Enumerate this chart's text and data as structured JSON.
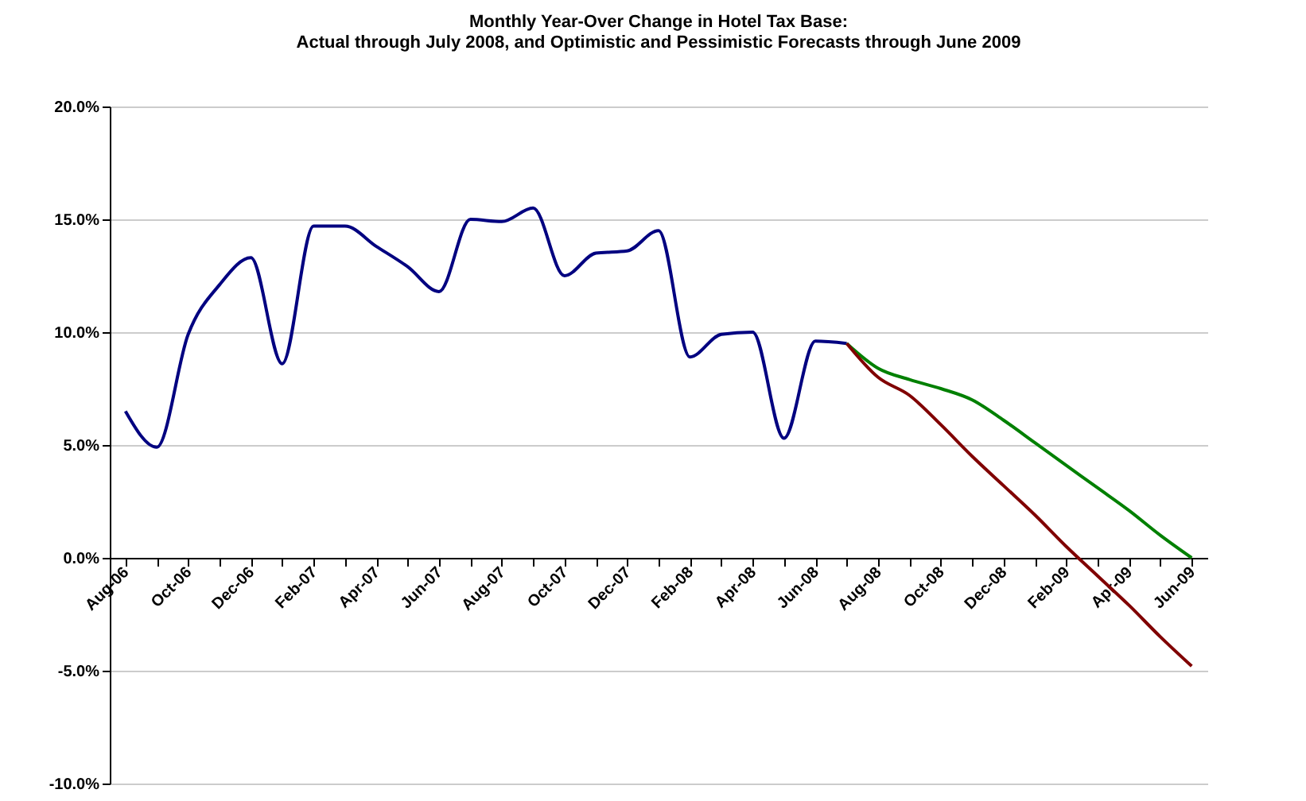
{
  "chart_data": {
    "type": "line",
    "title": [
      "Monthly Year-Over Change in Hotel Tax Base:",
      "Actual through  July 2008, and Optimistic and Pessimistic Forecasts through June 2009"
    ],
    "categories": [
      "Aug-06",
      null,
      "Oct-06",
      null,
      "Dec-06",
      null,
      "Feb-07",
      null,
      "Apr-07",
      null,
      "Jun-07",
      null,
      "Aug-07",
      null,
      "Oct-07",
      null,
      "Dec-07",
      null,
      "Feb-08",
      null,
      "Apr-08",
      null,
      "Jun-08",
      null,
      "Aug-08",
      null,
      "Oct-08",
      null,
      "Dec-08",
      null,
      "Feb-09",
      null,
      "Apr-09",
      null,
      "Jun-09"
    ],
    "series": [
      {
        "color": "#000080",
        "values": [
          6.5,
          4.9,
          9.9,
          12.1,
          13.3,
          8.6,
          14.7,
          14.7,
          13.8,
          12.9,
          11.8,
          15.0,
          14.9,
          15.5,
          12.5,
          13.5,
          13.6,
          14.5,
          8.9,
          9.9,
          10.0,
          5.3,
          9.6,
          9.5,
          null,
          null,
          null,
          null,
          null,
          null,
          null,
          null,
          null,
          null,
          null
        ]
      },
      {
        "color": "#008000",
        "values": [
          null,
          null,
          null,
          null,
          null,
          null,
          null,
          null,
          null,
          null,
          null,
          null,
          null,
          null,
          null,
          null,
          null,
          null,
          null,
          null,
          null,
          null,
          null,
          9.5,
          8.4,
          7.9,
          7.5,
          7.0,
          6.1,
          5.1,
          4.1,
          3.1,
          2.1,
          1.0,
          0.0
        ]
      },
      {
        "color": "#800000",
        "values": [
          null,
          null,
          null,
          null,
          null,
          null,
          null,
          null,
          null,
          null,
          null,
          null,
          null,
          null,
          null,
          null,
          null,
          null,
          null,
          null,
          null,
          null,
          null,
          9.5,
          8.0,
          7.2,
          5.9,
          4.5,
          3.2,
          1.9,
          0.5,
          -0.8,
          -2.1,
          -3.5,
          -4.8
        ]
      }
    ],
    "ylim": [
      -10,
      20
    ],
    "yticks": [
      {
        "value": -10,
        "label": "-10.0%"
      },
      {
        "value": -5,
        "label": "-5.0%"
      },
      {
        "value": 0,
        "label": "0.0%"
      },
      {
        "value": 5,
        "label": "5.0%"
      },
      {
        "value": 10,
        "label": "10.0%"
      },
      {
        "value": 15,
        "label": "15.0%"
      },
      {
        "value": 20,
        "label": "20.0%"
      }
    ],
    "grid": "y",
    "legend": false,
    "marker": "none",
    "line_style": "solid"
  }
}
